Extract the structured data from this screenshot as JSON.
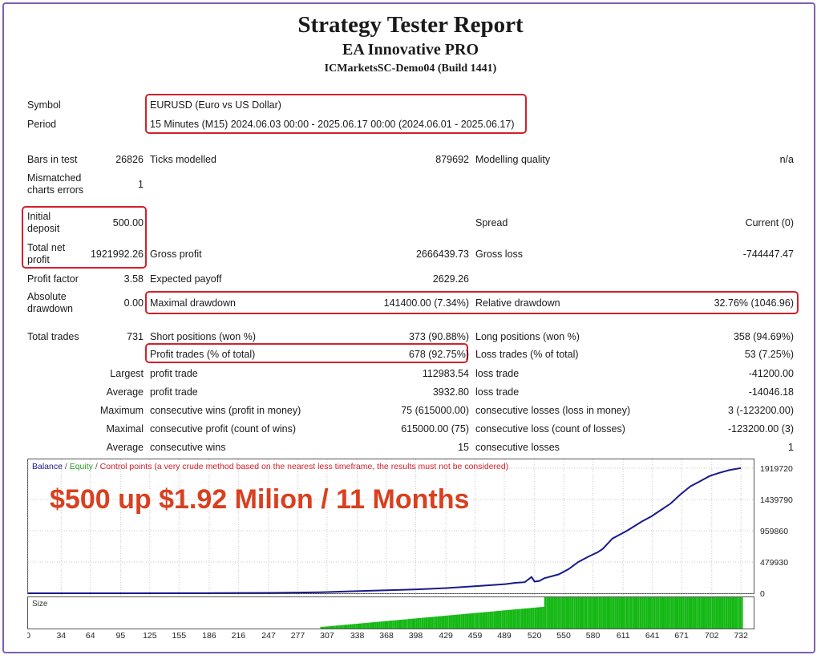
{
  "header": {
    "title": "Strategy Tester Report",
    "subtitle": "EA Innovative PRO",
    "server": "ICMarketsSC-Demo04 (Build 1441)"
  },
  "settings": {
    "symbol_label": "Symbol",
    "symbol_value": "EURUSD (Euro vs US Dollar)",
    "period_label": "Period",
    "period_value": "15 Minutes (M15) 2024.06.03 00:00 - 2025.06.17 00:00 (2024.06.01 - 2025.06.17)"
  },
  "stats": {
    "bars_label": "Bars in test",
    "bars_value": "26826",
    "ticks_label": "Ticks modelled",
    "ticks_value": "879692",
    "quality_label": "Modelling quality",
    "quality_value": "n/a",
    "mismatch_label_1": "Mismatched",
    "mismatch_label_2": "charts errors",
    "mismatch_value": "1",
    "deposit_label_1": "Initial",
    "deposit_label_2": "deposit",
    "deposit_value": "500.00",
    "spread_label": "Spread",
    "spread_value": "Current (0)",
    "net_label_1": "Total net",
    "net_label_2": "profit",
    "net_value": "1921992.26",
    "gross_profit_label": "Gross profit",
    "gross_profit_value": "2666439.73",
    "gross_loss_label": "Gross loss",
    "gross_loss_value": "-744447.47",
    "pf_label": "Profit factor",
    "pf_value": "3.58",
    "payoff_label": "Expected payoff",
    "payoff_value": "2629.26",
    "absdd_label_1": "Absolute",
    "absdd_label_2": "drawdown",
    "absdd_value": "0.00",
    "maxdd_label": "Maximal drawdown",
    "maxdd_value": "141400.00 (7.34%)",
    "reldd_label": "Relative drawdown",
    "reldd_value": "32.76% (1046.96)"
  },
  "trades": {
    "total_label": "Total trades",
    "total_value": "731",
    "short_label": "Short positions (won %)",
    "short_value": "373 (90.88%)",
    "long_label": "Long positions (won %)",
    "long_value": "358 (94.69%)",
    "profit_trades_label": "Profit trades (% of total)",
    "profit_trades_value": "678 (92.75%)",
    "loss_trades_label": "Loss trades (% of total)",
    "loss_trades_value": "53 (7.25%)",
    "rows": [
      {
        "prefix": "Largest",
        "left_label": "profit trade",
        "left_value": "112983.54",
        "right_label": "loss trade",
        "right_value": "-41200.00"
      },
      {
        "prefix": "Average",
        "left_label": "profit trade",
        "left_value": "3932.80",
        "right_label": "loss trade",
        "right_value": "-14046.18"
      },
      {
        "prefix": "Maximum",
        "left_label": "consecutive wins (profit in money)",
        "left_value": "75 (615000.00)",
        "right_label": "consecutive losses (loss in money)",
        "right_value": "3 (-123200.00)"
      },
      {
        "prefix": "Maximal",
        "left_label": "consecutive profit (count of wins)",
        "left_value": "615000.00 (75)",
        "right_label": "consecutive loss (count of losses)",
        "right_value": "-123200.00 (3)"
      },
      {
        "prefix": "Average",
        "left_label": "consecutive wins",
        "left_value": "15",
        "right_label": "consecutive losses",
        "right_value": "1"
      }
    ]
  },
  "legend": {
    "balance": "Balance",
    "sep1": " / ",
    "equity": "Equity",
    "sep2": " / ",
    "control": "Control points (a very crude method based on the nearest less timeframe, the results must not be considered)"
  },
  "banner": "$500 up $1.92 Milion / 11 Months",
  "colors": {
    "balance_line": "#1a1a8c",
    "size_bars": "#14b814",
    "highlight": "#d4202a",
    "banner": "#d8401f"
  },
  "chart_data": {
    "type": "line",
    "series": [
      {
        "name": "Balance",
        "x": [
          0,
          30,
          60,
          100,
          150,
          200,
          250,
          300,
          350,
          400,
          430,
          460,
          490,
          500,
          510,
          517,
          520,
          525,
          530,
          545,
          555,
          565,
          575,
          585,
          590,
          600,
          615,
          630,
          640,
          650,
          660,
          670,
          680,
          690,
          700,
          710,
          720,
          732
        ],
        "values": [
          500,
          500,
          500,
          600,
          1200,
          3000,
          6000,
          15000,
          38000,
          60000,
          80000,
          110000,
          140000,
          160000,
          170000,
          250000,
          180000,
          190000,
          230000,
          290000,
          370000,
          480000,
          560000,
          630000,
          680000,
          840000,
          960000,
          1100000,
          1180000,
          1280000,
          1380000,
          1520000,
          1640000,
          1720000,
          1800000,
          1850000,
          1890000,
          1921992
        ]
      }
    ],
    "y_ticks": [
      "1919720",
      "1439790",
      "959860",
      "479930",
      "0"
    ],
    "y_tick_values": [
      1919720,
      1439790,
      959860,
      479930,
      0
    ],
    "ylim": [
      0,
      1919720
    ],
    "x_ticks": [
      "0",
      "34",
      "64",
      "95",
      "125",
      "155",
      "186",
      "216",
      "247",
      "277",
      "307",
      "338",
      "368",
      "398",
      "429",
      "459",
      "489",
      "520",
      "550",
      "580",
      "611",
      "641",
      "671",
      "702",
      "732"
    ],
    "xlim": [
      0,
      745
    ],
    "size_panel_label": "Size",
    "size_series": {
      "x_ramp_start": 300,
      "x_ramp_end": 530,
      "x_full_end": 732,
      "ramp_min": 0.05,
      "ramp_max": 0.7
    }
  }
}
